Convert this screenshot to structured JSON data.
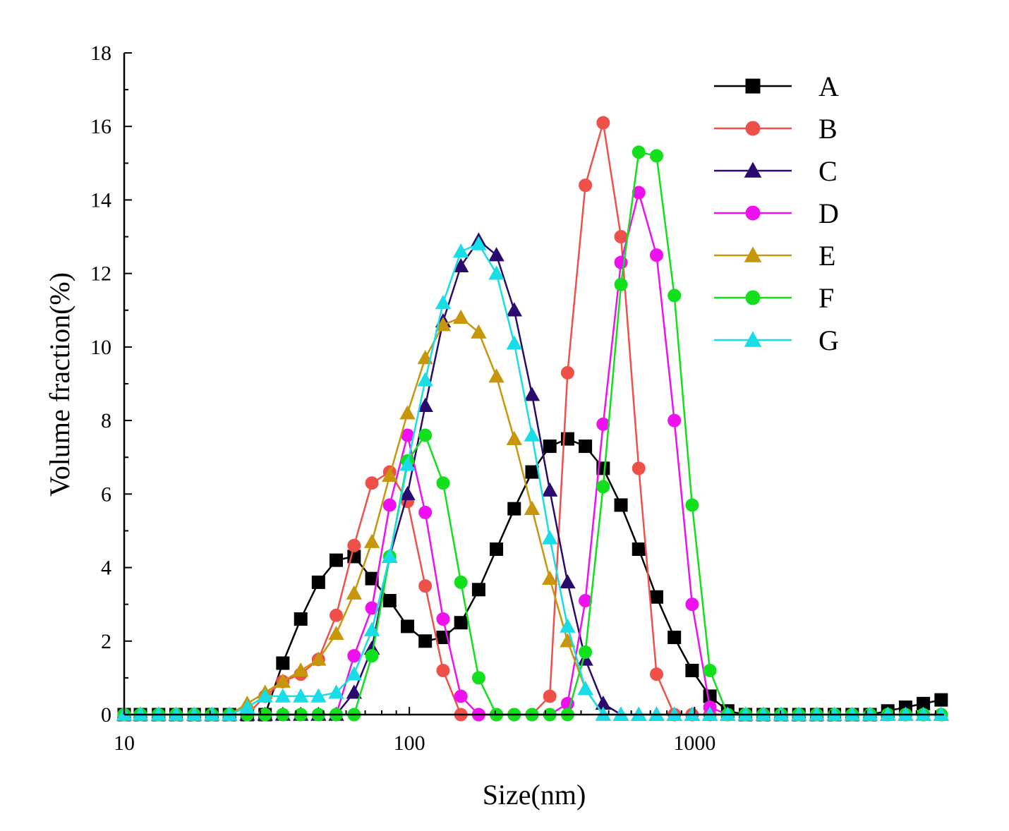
{
  "chart_data": {
    "type": "line",
    "x_scale": "log",
    "xlabel": "Size(nm)",
    "ylabel": "Volume fraction(%)",
    "xlim": [
      10,
      7500
    ],
    "ylim": [
      0,
      18
    ],
    "x_ticks": [
      10,
      100,
      1000
    ],
    "x_tick_labels": [
      "10",
      "100",
      "1000"
    ],
    "y_ticks": [
      0,
      2,
      4,
      6,
      8,
      10,
      12,
      14,
      16,
      18
    ],
    "y_tick_labels": [
      "0",
      "2",
      "4",
      "6",
      "8",
      "10",
      "12",
      "14",
      "16",
      "18"
    ],
    "legend_position": "top-right",
    "x": [
      10,
      11.4,
      13.2,
      15.2,
      17.6,
      20.3,
      23.4,
      27,
      31.2,
      36,
      41.6,
      48,
      55.4,
      64,
      73.9,
      85.3,
      98.5,
      113.7,
      131.3,
      151.6,
      175,
      202,
      233.2,
      269.2,
      310.8,
      358.8,
      414.2,
      478.2,
      552.1,
      637.4,
      735.9,
      849.5,
      980.7,
      1132,
      1307,
      1509,
      1742,
      2011,
      2322,
      2680,
      3094,
      3572,
      4124,
      4761,
      5496,
      6345,
      7325
    ],
    "series": [
      {
        "name": "A",
        "color": "#000000",
        "marker": "square",
        "values": [
          0,
          0,
          0,
          0,
          0,
          0,
          0,
          0,
          0,
          1.4,
          2.6,
          3.6,
          4.2,
          4.3,
          3.7,
          3.1,
          2.4,
          2.0,
          2.1,
          2.5,
          3.4,
          4.5,
          5.6,
          6.6,
          7.3,
          7.5,
          7.3,
          6.7,
          5.7,
          4.5,
          3.2,
          2.1,
          1.2,
          0.5,
          0.1,
          0,
          0,
          0,
          0,
          0,
          0,
          0,
          0,
          0.1,
          0.2,
          0.3,
          0.4
        ]
      },
      {
        "name": "B",
        "color": "#f0504a",
        "marker": "circle",
        "values": [
          0,
          0,
          0,
          0,
          0,
          0,
          0,
          0,
          0.5,
          0.9,
          1.1,
          1.5,
          2.7,
          4.6,
          6.3,
          6.6,
          5.8,
          3.5,
          1.2,
          0,
          0,
          0,
          0,
          0,
          0.5,
          9.3,
          14.4,
          16.1,
          13.0,
          6.7,
          1.1,
          0,
          0,
          0,
          0,
          0,
          0,
          0,
          0,
          0,
          0,
          0,
          0,
          0,
          0,
          0,
          0
        ]
      },
      {
        "name": "C",
        "color": "#2a0a6e",
        "marker": "triangle",
        "values": [
          0,
          0,
          0,
          0,
          0,
          0,
          0,
          0,
          0,
          0,
          0,
          0,
          0,
          0.6,
          1.8,
          4.3,
          6.0,
          8.4,
          10.7,
          12.2,
          12.9,
          12.5,
          11.0,
          8.7,
          6.1,
          3.6,
          1.5,
          0.3,
          0,
          0,
          0,
          0,
          0,
          0,
          0,
          0,
          0,
          0,
          0,
          0,
          0,
          0,
          0,
          0,
          0,
          0,
          0
        ]
      },
      {
        "name": "D",
        "color": "#ee10ee",
        "marker": "circle",
        "values": [
          0,
          0,
          0,
          0,
          0,
          0,
          0,
          0,
          0,
          0,
          0,
          0,
          0,
          1.6,
          2.9,
          5.7,
          7.6,
          5.5,
          2.6,
          0.5,
          0,
          0,
          0,
          0,
          0,
          0.3,
          3.1,
          7.9,
          12.3,
          14.2,
          12.5,
          8.0,
          3.0,
          0.2,
          0,
          0,
          0,
          0,
          0,
          0,
          0,
          0,
          0,
          0,
          0,
          0,
          0
        ]
      },
      {
        "name": "E",
        "color": "#c8960a",
        "marker": "triangle",
        "values": [
          0,
          0,
          0,
          0,
          0,
          0,
          0,
          0.3,
          0.6,
          0.9,
          1.2,
          1.5,
          2.2,
          3.3,
          4.7,
          6.5,
          8.2,
          9.7,
          10.6,
          10.8,
          10.4,
          9.2,
          7.5,
          5.6,
          3.7,
          2.0,
          0.7,
          0,
          0,
          0,
          0,
          0,
          0,
          0,
          0,
          0,
          0,
          0,
          0,
          0,
          0,
          0,
          0,
          0,
          0,
          0,
          0
        ]
      },
      {
        "name": "F",
        "color": "#12e01c",
        "marker": "circle",
        "values": [
          0,
          0,
          0,
          0,
          0,
          0,
          0,
          0,
          0,
          0,
          0,
          0,
          0,
          0,
          1.6,
          4.3,
          6.9,
          7.6,
          6.3,
          3.6,
          1.0,
          0,
          0,
          0,
          0,
          0,
          1.7,
          6.2,
          11.7,
          15.3,
          15.2,
          11.4,
          5.7,
          1.2,
          0,
          0,
          0,
          0,
          0,
          0,
          0,
          0,
          0,
          0,
          0,
          0,
          0
        ]
      },
      {
        "name": "G",
        "color": "#18dce6",
        "marker": "triangle",
        "values": [
          0,
          0,
          0,
          0,
          0,
          0,
          0,
          0.2,
          0.5,
          0.5,
          0.5,
          0.5,
          0.6,
          1.1,
          2.3,
          4.3,
          6.8,
          9.1,
          11.2,
          12.6,
          12.8,
          12.0,
          10.1,
          7.6,
          4.8,
          2.4,
          0.7,
          0,
          0,
          0,
          0,
          0,
          0,
          0,
          0,
          0,
          0,
          0,
          0,
          0,
          0,
          0,
          0,
          0,
          0,
          0,
          0
        ]
      }
    ]
  }
}
